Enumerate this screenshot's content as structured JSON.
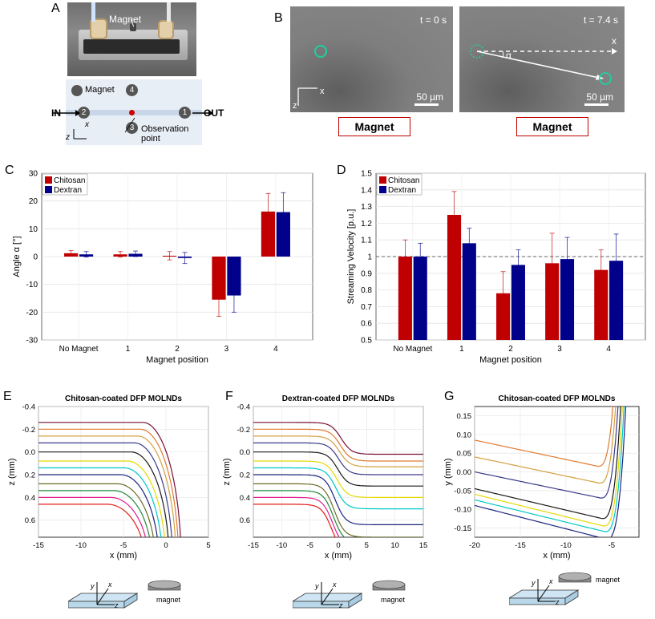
{
  "panel_letters": {
    "A": "A",
    "B": "B",
    "C": "C",
    "D": "D",
    "E": "E",
    "F": "F",
    "G": "G"
  },
  "panelA": {
    "photo_label": "Magnet",
    "legend_label": "Magnet",
    "in_label": "IN",
    "out_label": "OUT",
    "positions": [
      "1",
      "2",
      "3",
      "4"
    ],
    "observation_label": "Observation point",
    "axis_x": "x",
    "axis_z": "z"
  },
  "panelB": {
    "t0": "t = 0 s",
    "t1": "t = 7.4 s",
    "scale": "50 µm",
    "axis_x": "x",
    "axis_z": "z",
    "alpha": "α",
    "x_arrow": "x",
    "magnet_box": "Magnet"
  },
  "chart_data": [
    {
      "id": "C",
      "type": "bar",
      "categories": [
        "No Magnet",
        "1",
        "2",
        "3",
        "4"
      ],
      "series": [
        {
          "name": "Chitosan",
          "color": "#c00000",
          "values": [
            1.2,
            0.8,
            0.3,
            -15.5,
            16.2
          ],
          "errors": [
            1.0,
            1.0,
            1.5,
            6.0,
            6.5
          ]
        },
        {
          "name": "Dextran",
          "color": "#00008b",
          "values": [
            0.8,
            1.0,
            -0.5,
            -14.0,
            16.0
          ],
          "errors": [
            1.0,
            1.0,
            2.0,
            6.0,
            7.0
          ]
        }
      ],
      "xlabel": "Magnet position",
      "ylabel": "Angle α [°]",
      "ylim": [
        -30,
        30
      ],
      "yticks": [
        "-30",
        "-20",
        "-10",
        "0",
        "10",
        "20",
        "30"
      ],
      "legend": "top-left",
      "grid": true
    },
    {
      "id": "D",
      "type": "bar",
      "categories": [
        "No Magnet",
        "1",
        "2",
        "3",
        "4"
      ],
      "series": [
        {
          "name": "Chitosan",
          "color": "#c00000",
          "values": [
            1.0,
            1.25,
            0.78,
            0.96,
            0.92
          ],
          "errors": [
            0.1,
            0.14,
            0.13,
            0.18,
            0.12
          ]
        },
        {
          "name": "Dextran",
          "color": "#00008b",
          "values": [
            1.0,
            1.08,
            0.95,
            0.985,
            0.975
          ],
          "errors": [
            0.08,
            0.09,
            0.09,
            0.13,
            0.16
          ]
        }
      ],
      "xlabel": "Magnet position",
      "ylabel": "Streaming Velocity [p.u.]",
      "ylim": [
        0.5,
        1.5
      ],
      "yticks": [
        "0.5",
        "0.6",
        "0.7",
        "0.8",
        "0.9",
        "1",
        "1.1",
        "1.2",
        "1.3",
        "1.4",
        "1.5"
      ],
      "reference_line": 1.0,
      "legend": "top-left",
      "grid": true
    },
    {
      "id": "E",
      "type": "line",
      "title": "Chitosan-coated DFP MOLNDs",
      "xlabel": "x (mm)",
      "ylabel": "z (mm)",
      "xlim": [
        -15,
        5
      ],
      "ylim": [
        0.75,
        -0.4
      ],
      "xticks": [
        "-15",
        "-10",
        "-5",
        "0",
        "5"
      ],
      "yticks": [
        "-0.4",
        "-0.2",
        "0.0",
        "0.2",
        "0.4",
        "0.6"
      ],
      "z0": [
        -0.26,
        -0.2,
        -0.14,
        -0.08,
        0.0,
        0.08,
        0.14,
        0.2,
        0.28,
        0.34,
        0.4,
        0.46
      ],
      "xend": [
        1.8,
        1.5,
        1.2,
        0.8,
        0.4,
        0.0,
        -0.4,
        -0.8,
        -1.2,
        -1.6,
        -2.0,
        -2.4
      ]
    },
    {
      "id": "F",
      "type": "line",
      "title": "Dextran-coated DFP MOLNDs",
      "xlabel": "x (mm)",
      "ylabel": "z (mm)",
      "xlim": [
        -15,
        15
      ],
      "ylim": [
        0.75,
        -0.4
      ],
      "xticks": [
        "-15",
        "-10",
        "-5",
        "0",
        "5",
        "10",
        "15"
      ],
      "yticks": [
        "-0.4",
        "-0.2",
        "0.0",
        "0.2",
        "0.4",
        "0.6"
      ],
      "z0": [
        -0.26,
        -0.2,
        -0.14,
        -0.08,
        0.0,
        0.08,
        0.14,
        0.2,
        0.28,
        0.34,
        0.4,
        0.46
      ],
      "z1": [
        0.02,
        0.08,
        0.13,
        0.2,
        0.3,
        0.4,
        0.5,
        0.64,
        0.75,
        0.8,
        0.85,
        0.9
      ]
    },
    {
      "id": "G",
      "type": "line",
      "title": "Chitosan-coated DFP MOLNDs",
      "xlabel": "x (mm)",
      "ylabel": "y (mm)",
      "xlim": [
        -20,
        -2
      ],
      "ylim": [
        -0.175,
        0.175
      ],
      "xticks": [
        "-20",
        "-15",
        "-10",
        "-5"
      ],
      "yticks": [
        "0.15",
        "0.10",
        "0.05",
        "0.00",
        "-0.05",
        "-0.10",
        "-0.15"
      ],
      "y0": [
        0.085,
        0.04,
        0.0,
        -0.045,
        -0.06,
        -0.075,
        -0.09
      ],
      "ymin": [
        0.015,
        -0.03,
        -0.07,
        -0.125,
        -0.145,
        -0.16,
        -0.18
      ]
    }
  ],
  "line_colors": [
    "#7a0f3a",
    "#e07a30",
    "#d4a040",
    "#3a3a8a",
    "#1a1a1a",
    "#e6d800",
    "#00c8c8",
    "#1a237e",
    "#6b6b2a",
    "#1f8a3a",
    "#e11d8f",
    "#e51b1b",
    "#f07a1a",
    "#000000"
  ],
  "schematic": {
    "y": "y",
    "x": "x",
    "z": "z",
    "magnet": "magnet"
  }
}
